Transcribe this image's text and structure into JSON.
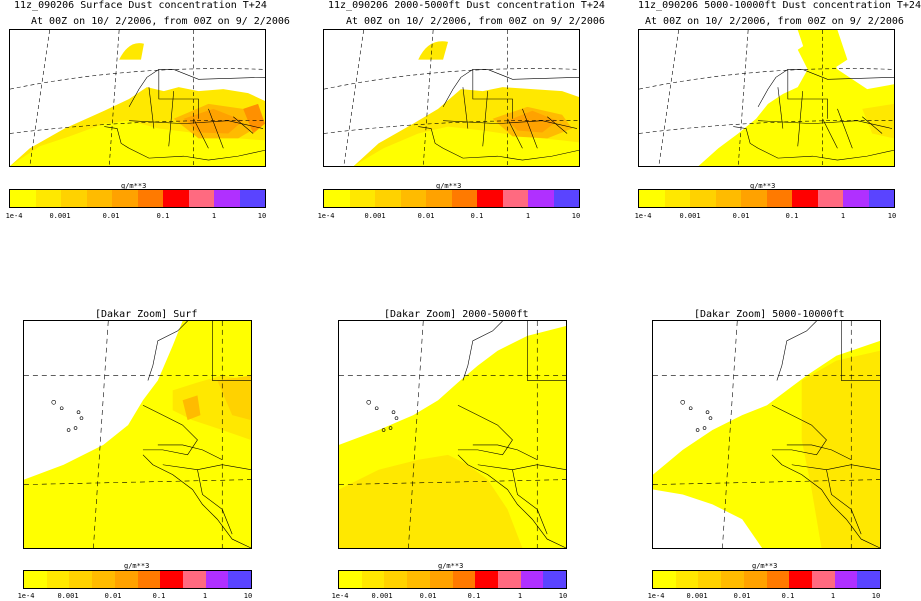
{
  "palette": [
    "#ffff00",
    "#ffe800",
    "#ffd200",
    "#ffbb00",
    "#ffa200",
    "#ff7a00",
    "#ff0000",
    "#ff6a80",
    "#b030ff",
    "#5a44ff"
  ],
  "colorbar": {
    "unit": "g/m**3",
    "ticks": [
      "1e-4",
      "0.001",
      "0.01",
      "0.1",
      "1",
      "10"
    ]
  },
  "panels": [
    {
      "title": "11z_090206 Surface Dust concentration T+24",
      "subtitle": "At 00Z on 10/ 2/2006, from 00Z on 9/ 2/2006"
    },
    {
      "title": "11z_090206 2000-5000ft Dust concentration T+24",
      "subtitle": "At 00Z on 10/ 2/2006, from 00Z on 9/ 2/2006"
    },
    {
      "title": "11z_090206 5000-10000ft Dust concentration T+24",
      "subtitle": "At 00Z on 10/ 2/2006, from 00Z on 9/ 2/2006"
    },
    {
      "title": "[Dakar Zoom] Surf"
    },
    {
      "title": "[Dakar Zoom] 2000-5000ft"
    },
    {
      "title": "[Dakar Zoom] 5000-10000ft"
    }
  ],
  "map_features": {
    "projection": "stereographic",
    "graticule": "dashed",
    "coastlines": true,
    "borders": true,
    "field": "dust concentration"
  }
}
